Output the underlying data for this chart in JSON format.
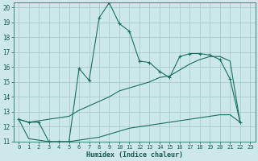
{
  "xlabel": "Humidex (Indice chaleur)",
  "bg_color": "#cce8e8",
  "grid_color": "#b0d4d4",
  "line_color": "#1a6e60",
  "xlim": [
    -0.5,
    23.5
  ],
  "ylim": [
    11,
    20.3
  ],
  "xticks": [
    0,
    1,
    2,
    3,
    4,
    5,
    6,
    7,
    8,
    9,
    10,
    11,
    12,
    13,
    14,
    15,
    16,
    17,
    18,
    19,
    20,
    21,
    22,
    23
  ],
  "yticks": [
    11,
    12,
    13,
    14,
    15,
    16,
    17,
    18,
    19,
    20
  ],
  "line1_x": [
    0,
    1,
    2,
    3,
    4,
    5,
    6,
    7,
    8,
    9,
    10,
    11,
    12,
    13,
    14,
    15,
    16,
    17,
    18,
    19,
    20,
    21,
    22
  ],
  "line1_y": [
    12.5,
    12.3,
    12.3,
    11.0,
    11.0,
    11.0,
    15.9,
    15.1,
    19.3,
    20.3,
    18.9,
    18.4,
    16.4,
    16.3,
    15.7,
    15.3,
    16.7,
    16.9,
    16.9,
    16.8,
    16.5,
    15.2,
    12.3
  ],
  "line2_x": [
    0,
    1,
    2,
    3,
    4,
    5,
    6,
    7,
    8,
    9,
    10,
    11,
    12,
    13,
    14,
    15,
    16,
    17,
    18,
    19,
    20,
    21,
    22
  ],
  "line2_y": [
    12.5,
    12.3,
    12.4,
    12.5,
    12.6,
    12.7,
    13.1,
    13.4,
    13.7,
    14.0,
    14.4,
    14.6,
    14.8,
    15.0,
    15.3,
    15.4,
    15.8,
    16.2,
    16.5,
    16.7,
    16.7,
    16.4,
    12.3
  ],
  "line3_x": [
    0,
    1,
    2,
    3,
    4,
    5,
    6,
    7,
    8,
    9,
    10,
    11,
    12,
    13,
    14,
    15,
    16,
    17,
    18,
    19,
    20,
    21,
    22
  ],
  "line3_y": [
    12.5,
    11.2,
    11.1,
    11.0,
    11.0,
    11.0,
    11.1,
    11.2,
    11.3,
    11.5,
    11.7,
    11.9,
    12.0,
    12.1,
    12.2,
    12.3,
    12.4,
    12.5,
    12.6,
    12.7,
    12.8,
    12.8,
    12.3
  ]
}
